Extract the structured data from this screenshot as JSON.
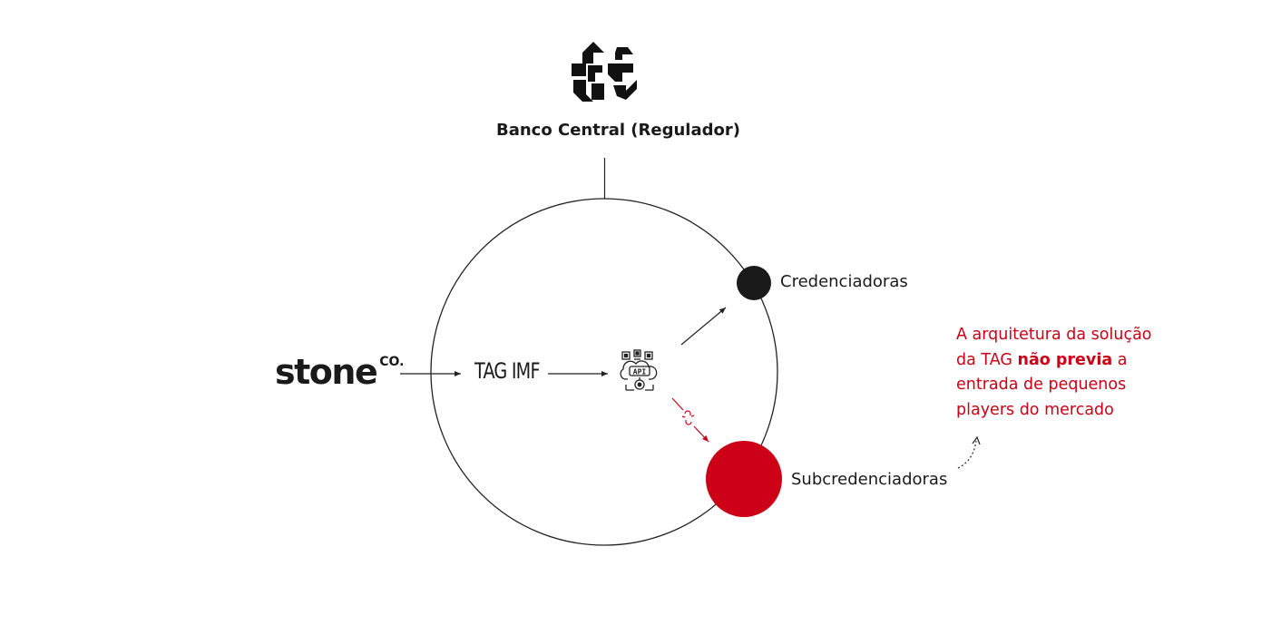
{
  "regulator": {
    "label": "Banco Central (Regulador)",
    "icon": "banco-central-logo"
  },
  "source": {
    "brand": "stone",
    "brand_suffix": "CO."
  },
  "registrar": {
    "label": "TAG IMF"
  },
  "api": {
    "icon": "api-cloud-icon",
    "text": "API"
  },
  "nodes": {
    "credenciadoras": "Credenciadoras",
    "subcredenciadoras": "Subcredenciadoras"
  },
  "note": {
    "before": "A arquitetura da solução da TAG ",
    "emphasis": "não previa",
    "after": " a entrada de pequenos players do mercado"
  },
  "colors": {
    "accent_red": "#cc0016",
    "dark": "#1a1a1a",
    "line": "#222222"
  }
}
